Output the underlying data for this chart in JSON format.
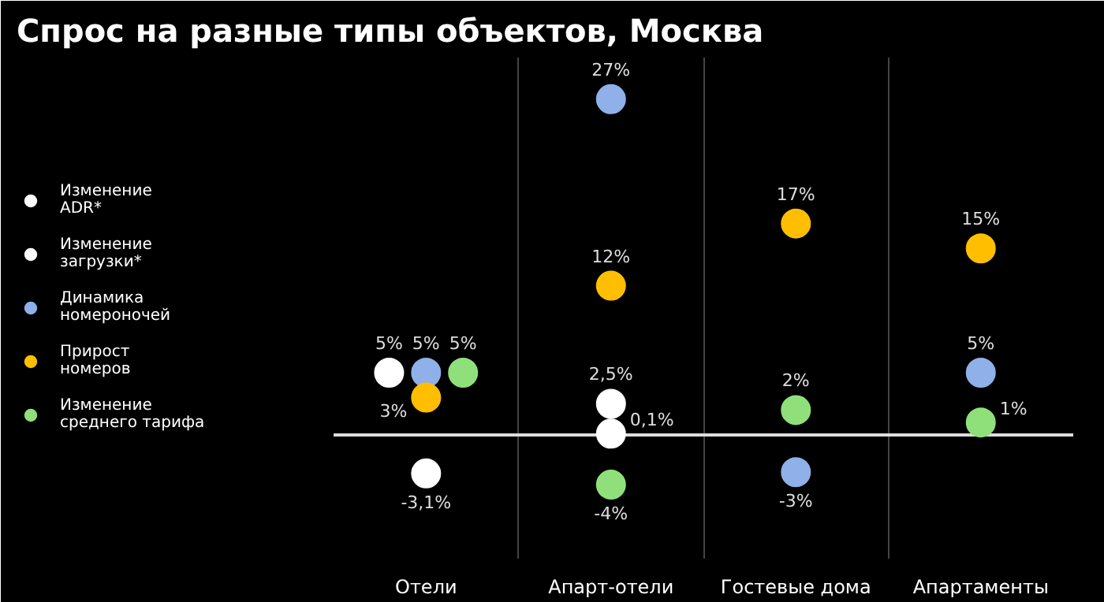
{
  "chart_data": {
    "type": "scatter",
    "title": "Спрос на разные типы объектов, Москва",
    "categories": [
      "Отели",
      "Апарт-отели",
      "Гостевые дома",
      "Апартаменты"
    ],
    "marker": "circle",
    "grid": "x",
    "legend": "left",
    "series": [
      {
        "name": "Изменение\nADR*",
        "color": "#ffffff",
        "values": [
          5,
          2.5,
          null,
          null
        ],
        "value_labels": [
          "5%",
          "2,5%",
          null,
          null
        ]
      },
      {
        "name": "Изменение\nзагрузки*",
        "color": "#ffffff",
        "values": [
          -3.1,
          0.1,
          null,
          null
        ],
        "value_labels": [
          "-3,1%",
          "0,1%",
          null,
          null
        ]
      },
      {
        "name": "Динамика\nномероночей",
        "color": "#8fb0e8",
        "values": [
          5,
          27,
          -3,
          5
        ],
        "value_labels": [
          "5%",
          "27%",
          "-3%",
          "5%"
        ]
      },
      {
        "name": "Прирост\nномеров",
        "color": "#ffbf00",
        "values": [
          3,
          12,
          17,
          15
        ],
        "value_labels": [
          "3%",
          "12%",
          "17%",
          "15%"
        ]
      },
      {
        "name": "Изменение\nсреднего тарифа",
        "color": "#8fe07a",
        "values": [
          5,
          -4,
          2,
          1
        ],
        "value_labels": [
          "5%",
          "-4%",
          "2%",
          "1%"
        ]
      }
    ]
  }
}
